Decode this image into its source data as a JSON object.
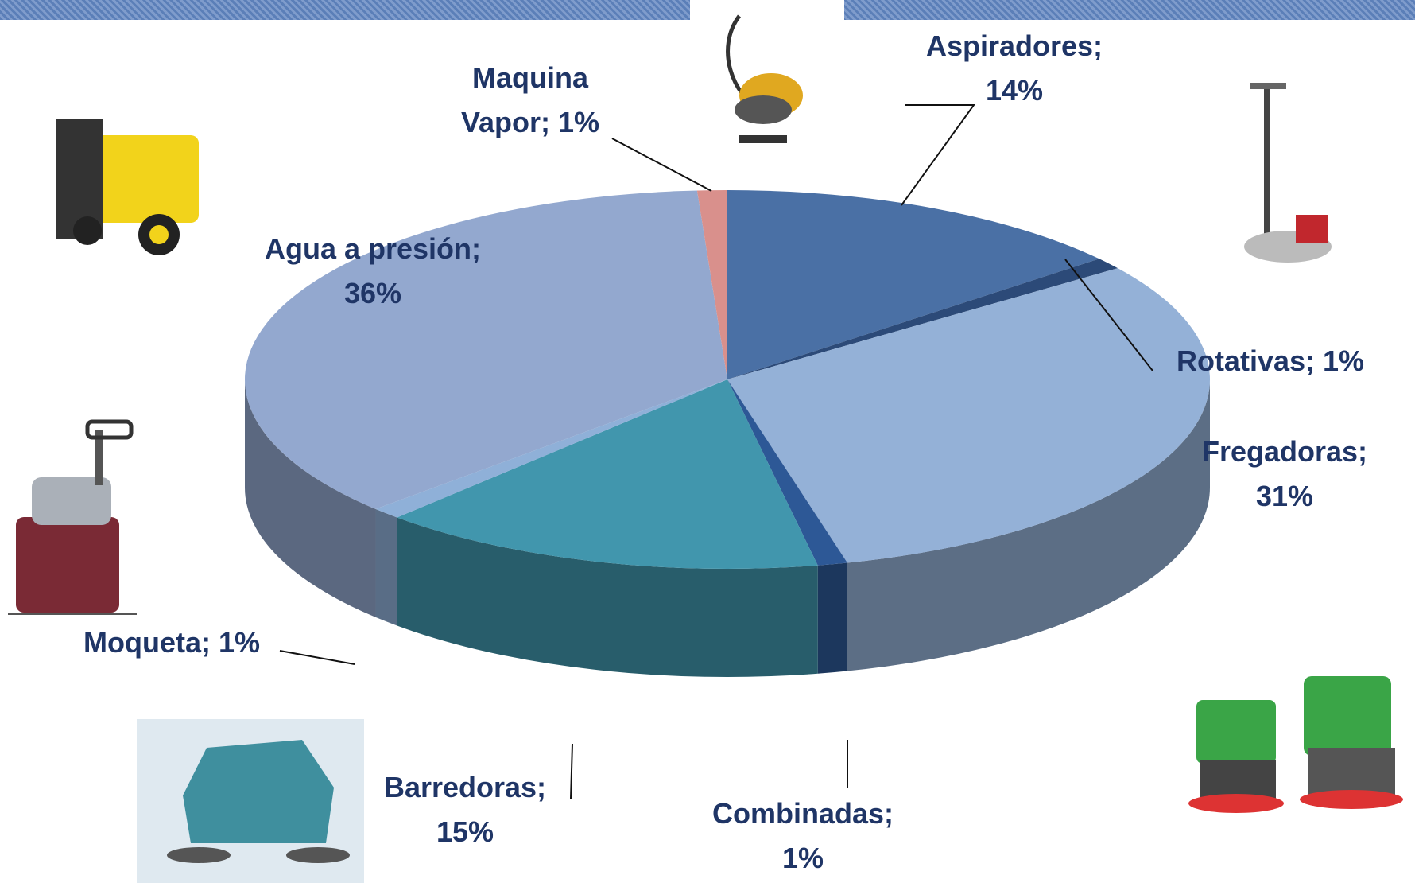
{
  "chart_data": {
    "type": "pie3d",
    "values": [
      14,
      1,
      31,
      1,
      15,
      1,
      36,
      1
    ],
    "value_labels": [
      "Aspiradores; 14%",
      "Rotativas; 1%",
      "Fregadoras; 31%",
      "Combinadas; 1%",
      "Barredoras; 15%",
      "Moqueta; 1%",
      "Agua a presión; 36%",
      "Maquina Vapor; 1%"
    ],
    "colors": [
      "#4a70a5",
      "#2c4a78",
      "#94b1d7",
      "#2d5896",
      "#4196ad",
      "#8fb0d8",
      "#93a8cf",
      "#d9908c"
    ]
  }
}
